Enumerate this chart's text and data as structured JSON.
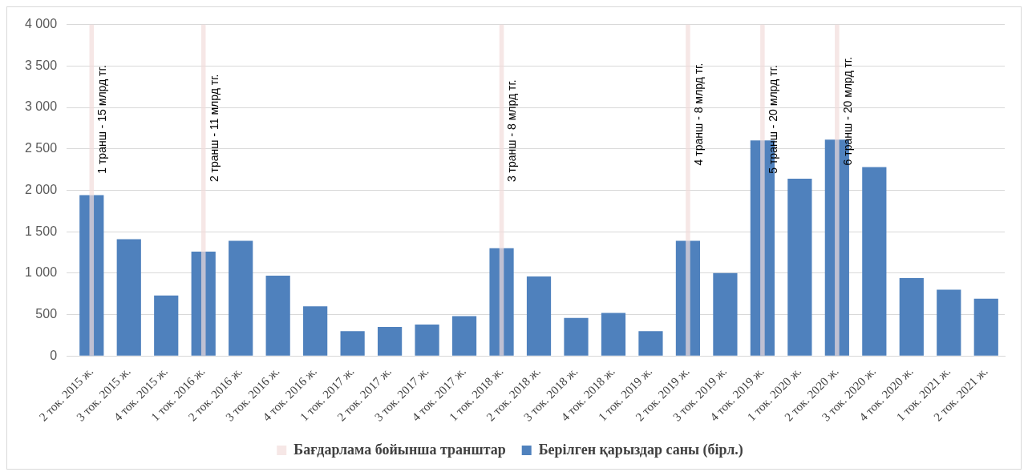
{
  "chart_data": {
    "type": "bar",
    "categories": [
      "2 ток. 2015 ж.",
      "3 ток. 2015 ж.",
      "4 ток. 2015 ж.",
      "1 ток. 2016 ж.",
      "2 ток. 2016 ж.",
      "3 ток. 2016 ж.",
      "4 ток. 2016 ж.",
      "1 ток. 2017 ж.",
      "2 ток. 2017 ж.",
      "3 ток. 2017 ж.",
      "4 ток. 2017 ж.",
      "1 ток. 2018 ж.",
      "2 ток. 2018 ж.",
      "3 ток. 2018 ж.",
      "4 ток. 2018 ж.",
      "1 ток. 2019 ж.",
      "2 ток. 2019 ж.",
      "3 ток. 2019 ж.",
      "4 ток. 2019 ж.",
      "1 ток. 2020 ж.",
      "2 ток. 2020 ж.",
      "3 ток. 2020 ж.",
      "4 ток. 2020 ж.",
      "1 ток. 2021 ж.",
      "2 ток. 2021 ж."
    ],
    "series": [
      {
        "name": "Берілген қарыздар саны (бірл.)",
        "color": "#4f81bd",
        "values": [
          1940,
          1410,
          730,
          1260,
          1390,
          970,
          600,
          300,
          350,
          380,
          480,
          1300,
          960,
          460,
          520,
          300,
          1390,
          1000,
          2600,
          2140,
          2610,
          2280,
          940,
          800,
          690
        ]
      },
      {
        "name": "Бағдарлама бойынша транштар",
        "color": "#f2dcdb",
        "values": [
          4000,
          null,
          null,
          4000,
          null,
          null,
          null,
          null,
          null,
          null,
          null,
          4000,
          null,
          null,
          null,
          null,
          4000,
          null,
          4000,
          null,
          4000,
          null,
          null,
          null,
          null
        ]
      }
    ],
    "annotations": [
      {
        "text": "1 транш - 15 млрд тг.",
        "x": "2 ток. 2015 ж.",
        "y": 2200
      },
      {
        "text": "2 транш - 11 млрд тг.",
        "x": "1 ток. 2016 ж.",
        "y": 2100
      },
      {
        "text": "3 транш - 8 млрд тг.",
        "x": "1 ток. 2018 ж.",
        "y": 2100
      },
      {
        "text": "4 транш - 8 млрд тг.",
        "x": "2 ток. 2019 ж.",
        "y": 2300
      },
      {
        "text": "5 транш - 20 млрд тг.",
        "x": "4 ток. 2019 ж.",
        "y": 2200
      },
      {
        "text": "6 транш - 20 млрд тг.",
        "x": "2 ток. 2020 ж.",
        "y": 2300
      }
    ],
    "ylim": [
      0,
      4000
    ],
    "yticks": [
      {
        "value": 0,
        "label": "0"
      },
      {
        "value": 500,
        "label": "500"
      },
      {
        "value": 1000,
        "label": "1 000"
      },
      {
        "value": 1500,
        "label": "1 500"
      },
      {
        "value": 2000,
        "label": "2 000"
      },
      {
        "value": 2500,
        "label": "2 500"
      },
      {
        "value": 3000,
        "label": "3 000"
      },
      {
        "value": 3500,
        "label": "3 500"
      },
      {
        "value": 4000,
        "label": "4 000"
      }
    ],
    "grid": "y",
    "legend": "bottom"
  }
}
